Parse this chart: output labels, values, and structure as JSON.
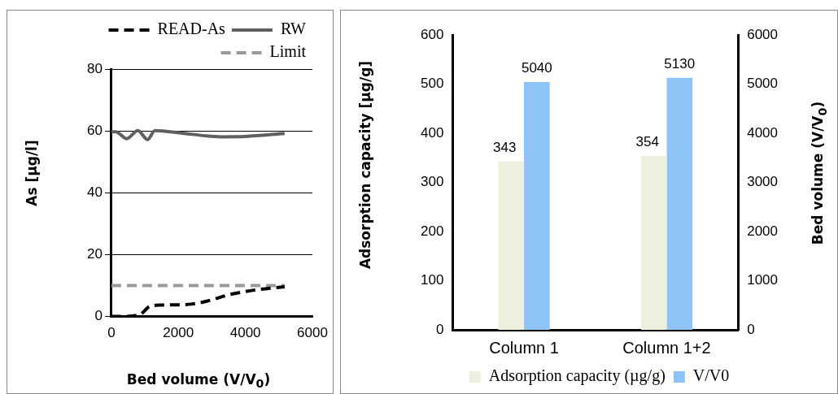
{
  "chart_data": [
    {
      "type": "line",
      "xlabel": "Bed volume (V/V$_{0}$)",
      "ylabel": "As [µg/l]",
      "xlim": [
        0,
        6000
      ],
      "xticks": [
        0,
        2000,
        4000,
        6000
      ],
      "ylim": [
        0,
        80
      ],
      "yticks": [
        0,
        20,
        40,
        60,
        80
      ],
      "grid": "y",
      "legend": "top right",
      "marker": "none",
      "series": [
        {
          "name": "READ-As",
          "color": "#000000",
          "line_style": "dashed",
          "x": [
            0,
            350,
            860,
            1150,
            1520,
            2390,
            2900,
            3490,
            4000,
            4440,
            5170
          ],
          "values": [
            0,
            0,
            0.7,
            3.3,
            3.7,
            4,
            5.1,
            7,
            8.1,
            8.8,
            9.6
          ]
        },
        {
          "name": "RW",
          "color": "#606060",
          "line_style": "solid",
          "x": [
            0,
            130,
            460,
            790,
            1080,
            1300,
            2170,
            3270,
            4000,
            5170
          ],
          "values": [
            59.7,
            59.7,
            57.5,
            60.1,
            57.2,
            60.1,
            59.2,
            58.1,
            58.2,
            59.2
          ]
        },
        {
          "name": "Limit",
          "color": "#999999",
          "line_style": "dashed",
          "x": [
            0,
            5170
          ],
          "values": [
            10,
            10
          ]
        }
      ]
    },
    {
      "type": "bar",
      "categories": [
        "Column 1",
        "Column 1+2"
      ],
      "ylabel": "Adsorption capacity [µg/g]",
      "y2label": "Bed volume (V/V$_{0}$)",
      "ylim": [
        0,
        600
      ],
      "yticks": [
        0,
        100,
        200,
        300,
        400,
        500,
        600
      ],
      "y2lim": [
        0,
        6000
      ],
      "y2ticks": [
        0,
        1000,
        2000,
        3000,
        4000,
        5000,
        6000
      ],
      "grid": false,
      "legend": "bottom",
      "data_labels": true,
      "series": [
        {
          "name": "Adsorption capacity (µg/g)",
          "color": "#ebf1de",
          "values": [
            343,
            354
          ]
        },
        {
          "name": "V/V0",
          "color": "#8ec4f5",
          "axis": "y2",
          "values": [
            5040,
            5130
          ]
        }
      ]
    }
  ]
}
